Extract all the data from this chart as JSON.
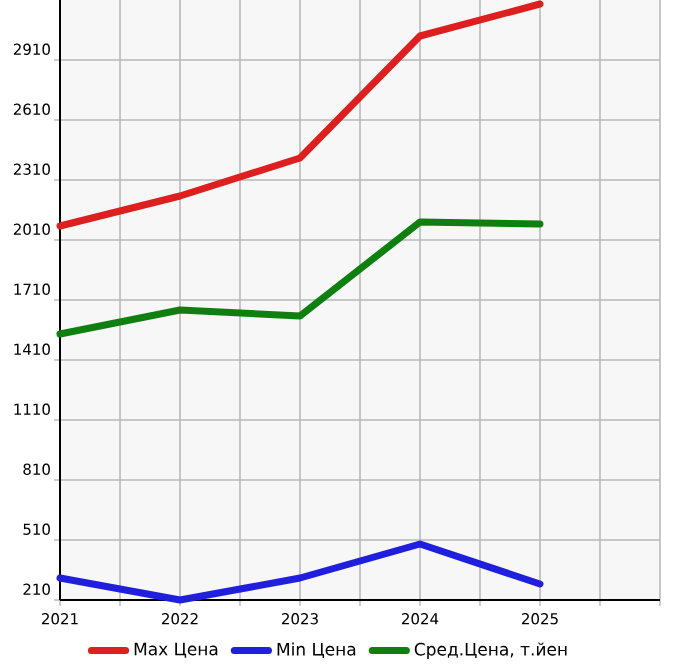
{
  "chart_data": {
    "type": "line",
    "x": [
      2021,
      2022,
      2023,
      2024,
      2025
    ],
    "series": [
      {
        "name": "Max Цена",
        "color": "#dd1f1f",
        "values": [
          2080,
          2230,
          2420,
          3030,
          3190
        ]
      },
      {
        "name": "Min Цена",
        "color": "#1f1fdd",
        "values": [
          320,
          210,
          320,
          490,
          290
        ]
      },
      {
        "name": "Сред.Цена, т.йен",
        "color": "#0f800f",
        "values": [
          1540,
          1660,
          1630,
          2100,
          2090
        ]
      }
    ],
    "xlim": [
      2021,
      2026
    ],
    "ylim": [
      210,
      3210
    ],
    "xticks": [
      2021,
      {
        "value": 2021.5,
        "label": null
      },
      2022,
      {
        "value": 2022.5,
        "label": null
      },
      2023,
      {
        "value": 2023.5,
        "label": null
      },
      2024,
      {
        "value": 2024.5,
        "label": null
      },
      2025,
      {
        "value": 2025.5,
        "label": null
      },
      {
        "value": 2026,
        "label": null
      }
    ],
    "yticks": [
      210,
      510,
      810,
      1110,
      1410,
      1710,
      2010,
      2310,
      2610,
      2910
    ],
    "grid": true,
    "legend": "bottom",
    "marker": "none",
    "line_style": "solid"
  }
}
